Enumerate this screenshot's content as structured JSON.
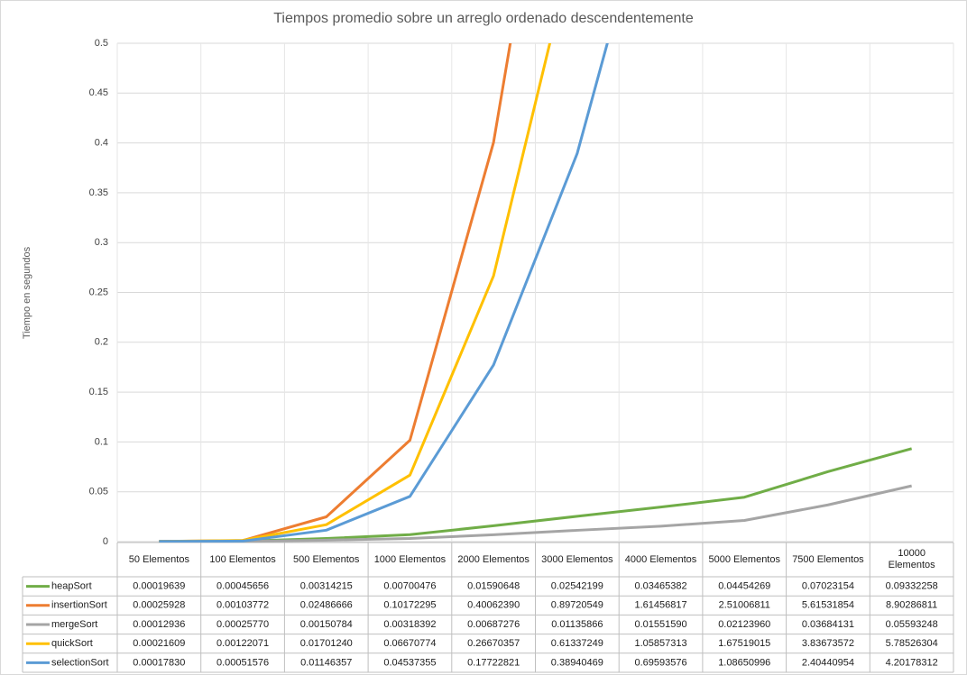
{
  "chart_data": {
    "type": "line",
    "title": "Tiempos promedio sobre un  arreglo ordenado descendentemente",
    "y_label": "Tiempo en segundos",
    "categories": [
      "50 Elementos",
      "100 Elementos",
      "500 Elementos",
      "1000 Elementos",
      "2000 Elementos",
      "3000 Elementos",
      "4000 Elementos",
      "5000 Elementos",
      "7500 Elementos",
      "10000 Elementos"
    ],
    "ylim": [
      0,
      0.5
    ],
    "yticks": [
      0,
      0.05,
      0.1,
      0.15,
      0.2,
      0.25,
      0.3,
      0.35,
      0.4,
      0.45,
      0.5
    ],
    "grid": true,
    "series": [
      {
        "name": "heapSort",
        "color": "#70ad47",
        "values": [
          0.00019639,
          0.00045656,
          0.00314215,
          0.00700476,
          0.01590648,
          0.02542199,
          0.03465382,
          0.04454269,
          0.07023154,
          0.09332258
        ],
        "value_labels": [
          "0.00019639",
          "0.00045656",
          "0.00314215",
          "0.00700476",
          "0.01590648",
          "0.02542199",
          "0.03465382",
          "0.04454269",
          "0.07023154",
          "0.09332258"
        ]
      },
      {
        "name": "insertionSort",
        "color": "#ed7d31",
        "values": [
          0.00025928,
          0.00103772,
          0.02486666,
          0.10172295,
          0.4006239,
          0.89720549,
          1.61456817,
          2.51006811,
          5.61531854,
          8.90286811
        ],
        "value_labels": [
          "0.00025928",
          "0.00103772",
          "0.02486666",
          "0.10172295",
          "0.40062390",
          "0.89720549",
          "1.61456817",
          "2.51006811",
          "5.61531854",
          "8.90286811"
        ]
      },
      {
        "name": "mergeSort",
        "color": "#a5a5a5",
        "values": [
          0.00012936,
          0.0002577,
          0.00150784,
          0.00318392,
          0.00687276,
          0.01135866,
          0.0155159,
          0.0212396,
          0.03684131,
          0.05593248
        ],
        "value_labels": [
          "0.00012936",
          "0.00025770",
          "0.00150784",
          "0.00318392",
          "0.00687276",
          "0.01135866",
          "0.01551590",
          "0.02123960",
          "0.03684131",
          "0.05593248"
        ]
      },
      {
        "name": "quickSort",
        "color": "#ffc000",
        "values": [
          0.00021609,
          0.00122071,
          0.0170124,
          0.06670774,
          0.26670357,
          0.61337249,
          1.05857313,
          1.67519015,
          3.83673572,
          5.78526304
        ],
        "value_labels": [
          "0.00021609",
          "0.00122071",
          "0.01701240",
          "0.06670774",
          "0.26670357",
          "0.61337249",
          "1.05857313",
          "1.67519015",
          "3.83673572",
          "5.78526304"
        ]
      },
      {
        "name": "selectionSort",
        "color": "#5b9bd5",
        "values": [
          0.0001783,
          0.00051576,
          0.01146357,
          0.04537355,
          0.17722821,
          0.38940469,
          0.69593576,
          1.08650996,
          2.40440954,
          4.20178312
        ],
        "value_labels": [
          "0.00017830",
          "0.00051576",
          "0.01146357",
          "0.04537355",
          "0.17722821",
          "0.38940469",
          "0.69593576",
          "1.08650996",
          "2.40440954",
          "4.20178312"
        ]
      }
    ]
  }
}
